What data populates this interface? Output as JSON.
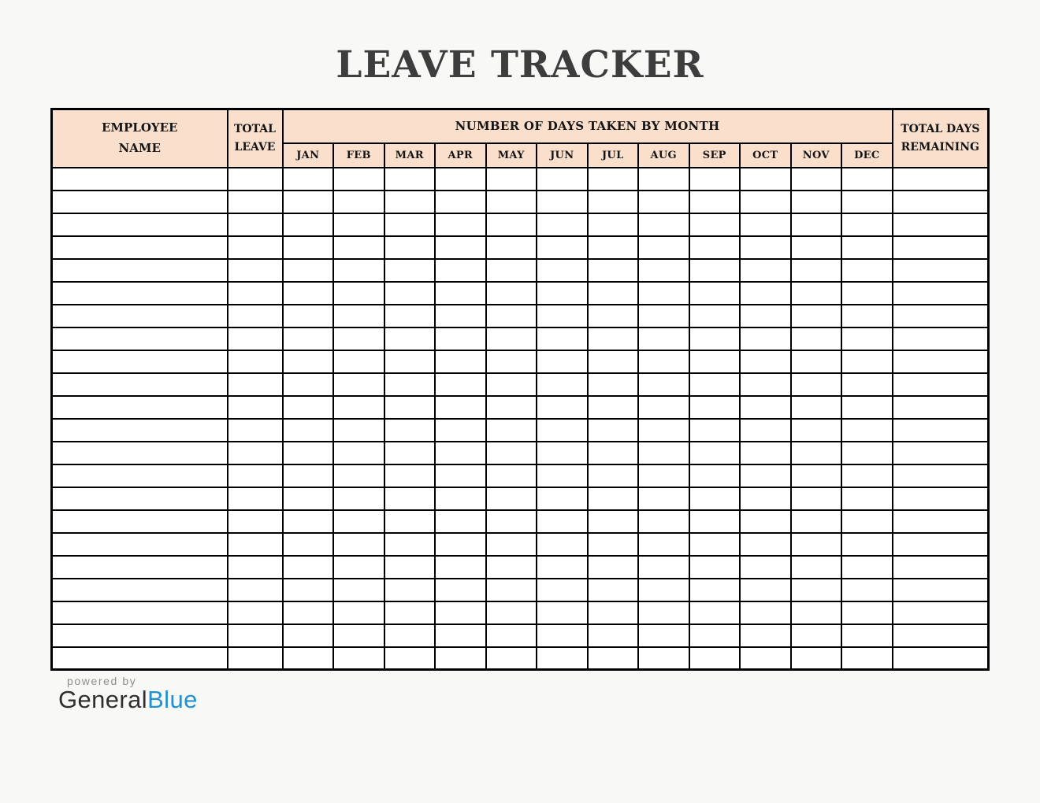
{
  "page": {
    "title": "LEAVE TRACKER",
    "title_color": "#3d3d3d",
    "background": "#f8f8f7"
  },
  "table": {
    "header_bg": "#fbdfcd",
    "border_color": "#000000",
    "rows": 22,
    "headers": {
      "employee_name": "EMPLOYEE\nNAME",
      "total_leave": "TOTAL\nLEAVE",
      "days_by_month": "NUMBER OF DAYS TAKEN BY MONTH",
      "total_days_remaining": "TOTAL DAYS\nREMAINING"
    },
    "months": [
      "JAN",
      "FEB",
      "MAR",
      "APR",
      "MAY",
      "JUN",
      "JUL",
      "AUG",
      "SEP",
      "OCT",
      "NOV",
      "DEC"
    ]
  },
  "footer": {
    "powered_by": "powered by",
    "brand_general": "General",
    "brand_blue": "Blue",
    "brand_blue_color": "#2191d2"
  }
}
